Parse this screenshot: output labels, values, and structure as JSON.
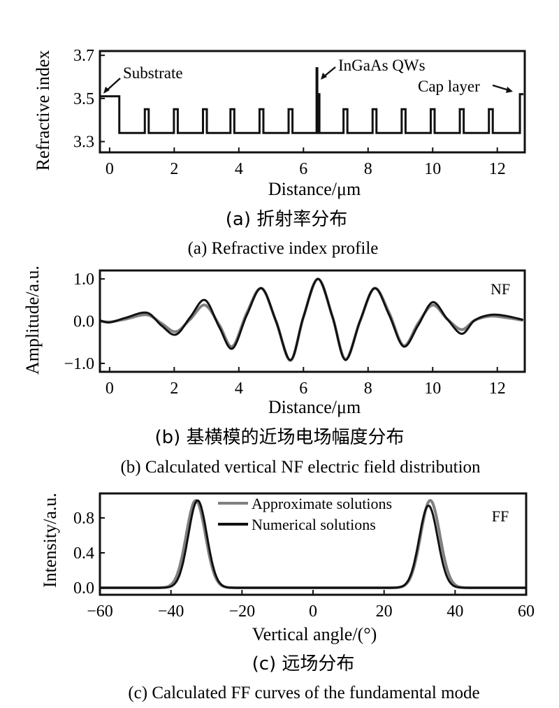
{
  "chart_data": [
    {
      "id": "a",
      "type": "line",
      "ylabel": "Refractive index",
      "xlabel": "Distance/μm",
      "xlim": [
        -0.3,
        12.85
      ],
      "ylim": [
        3.25,
        3.72
      ],
      "xticks": [
        0,
        2,
        4,
        6,
        8,
        10,
        12
      ],
      "yticks": [
        3.3,
        3.5,
        3.7
      ],
      "ytick_labels": [
        "3.3",
        "3.5",
        "3.7"
      ],
      "profile": {
        "base": 3.34,
        "substrate": {
          "x": [
            -0.3,
            0.3
          ],
          "value": 3.51
        },
        "bump_centers": [
          1.15,
          2.05,
          2.95,
          3.8,
          4.7,
          5.6,
          7.3,
          8.2,
          9.1,
          10.0,
          10.9,
          11.8
        ],
        "bump_width": 0.12,
        "bump_value": 3.45,
        "qw_center": 6.45,
        "qw_peaks": [
          3.64,
          3.52
        ],
        "cap": {
          "x": 12.7,
          "value": 3.52
        }
      },
      "annotations": [
        {
          "label": "Substrate",
          "at": [
            0.0,
            3.52
          ]
        },
        {
          "label": "InGaAs QWs",
          "at": [
            6.45,
            3.62
          ]
        },
        {
          "label": "Cap layer",
          "at": [
            12.72,
            3.52
          ]
        }
      ],
      "caption_zh": "(a) 折射率分布",
      "caption_en": "(a) Refractive index profile"
    },
    {
      "id": "b",
      "type": "line",
      "ylabel": "Amplitude/a.u.",
      "xlabel": "Distance/μm",
      "xlim": [
        -0.3,
        12.85
      ],
      "ylim": [
        -1.2,
        1.2
      ],
      "xticks": [
        0,
        2,
        4,
        6,
        8,
        10,
        12
      ],
      "yticks": [
        -1.0,
        0.0,
        1.0
      ],
      "ytick_labels": [
        "−1.0",
        "0.0",
        "1.0"
      ],
      "label": "NF",
      "series": [
        {
          "color": "#808080",
          "x": [
            -0.3,
            0,
            0.5,
            1.15,
            1.6,
            2.05,
            2.5,
            2.95,
            3.4,
            3.8,
            4.25,
            4.7,
            5.15,
            5.6,
            6.0,
            6.45,
            6.9,
            7.3,
            7.75,
            8.2,
            8.65,
            9.1,
            9.55,
            10.0,
            10.45,
            10.9,
            11.3,
            11.8,
            12.3,
            12.8
          ],
          "y": [
            0.0,
            -0.02,
            0.05,
            0.15,
            -0.05,
            -0.25,
            0.05,
            0.38,
            -0.1,
            -0.6,
            0.2,
            0.78,
            0.0,
            -0.93,
            0.1,
            1.0,
            0.1,
            -0.9,
            0.0,
            0.78,
            0.2,
            -0.58,
            -0.05,
            0.38,
            0.05,
            -0.2,
            0.02,
            0.12,
            0.08,
            0.02
          ]
        },
        {
          "color": "#111111",
          "x": [
            -0.3,
            0,
            0.5,
            1.15,
            1.6,
            2.05,
            2.5,
            2.95,
            3.4,
            3.8,
            4.25,
            4.7,
            5.15,
            5.6,
            6.0,
            6.45,
            6.9,
            7.3,
            7.75,
            8.2,
            8.65,
            9.1,
            9.55,
            10.0,
            10.45,
            10.9,
            11.3,
            11.8,
            12.3,
            12.8
          ],
          "y": [
            0.02,
            -0.03,
            0.08,
            0.2,
            -0.1,
            -0.32,
            0.1,
            0.5,
            -0.15,
            -0.65,
            0.15,
            0.78,
            0.0,
            -0.92,
            0.1,
            1.0,
            0.1,
            -0.92,
            0.0,
            0.78,
            0.15,
            -0.6,
            -0.1,
            0.45,
            0.05,
            -0.3,
            0.02,
            0.15,
            0.12,
            0.03
          ]
        }
      ],
      "caption_zh": "(b) 基横模的近场电场幅度分布",
      "caption_en": "(b) Calculated vertical NF electric field distribution"
    },
    {
      "id": "c",
      "type": "line",
      "ylabel": "Intensity/a.u.",
      "xlabel": "Vertical angle/(°)",
      "xlim": [
        -60,
        60
      ],
      "ylim": [
        -0.08,
        1.08
      ],
      "xticks": [
        -60,
        -40,
        -20,
        0,
        20,
        40,
        60
      ],
      "xtick_labels": [
        "−60",
        "−40",
        "−20",
        "0",
        "20",
        "40",
        "60"
      ],
      "yticks": [
        0.0,
        0.4,
        0.8
      ],
      "ytick_labels": [
        "0.0",
        "0.4",
        "0.8"
      ],
      "label": "FF",
      "series": [
        {
          "name": "Approximate solutions",
          "color": "#808080",
          "peaks": [
            {
              "center": -33.0,
              "height": 1.0,
              "sigma": 2.7
            },
            {
              "center": 33.0,
              "height": 1.0,
              "sigma": 2.7
            }
          ]
        },
        {
          "name": "Numerical solutions",
          "color": "#111111",
          "peaks": [
            {
              "center": -32.5,
              "height": 1.0,
              "sigma": 2.6
            },
            {
              "center": 32.5,
              "height": 0.94,
              "sigma": 2.6
            }
          ]
        }
      ],
      "caption_zh": "(c) 远场分布",
      "caption_en": "(c) Calculated FF curves of the fundamental mode"
    }
  ]
}
